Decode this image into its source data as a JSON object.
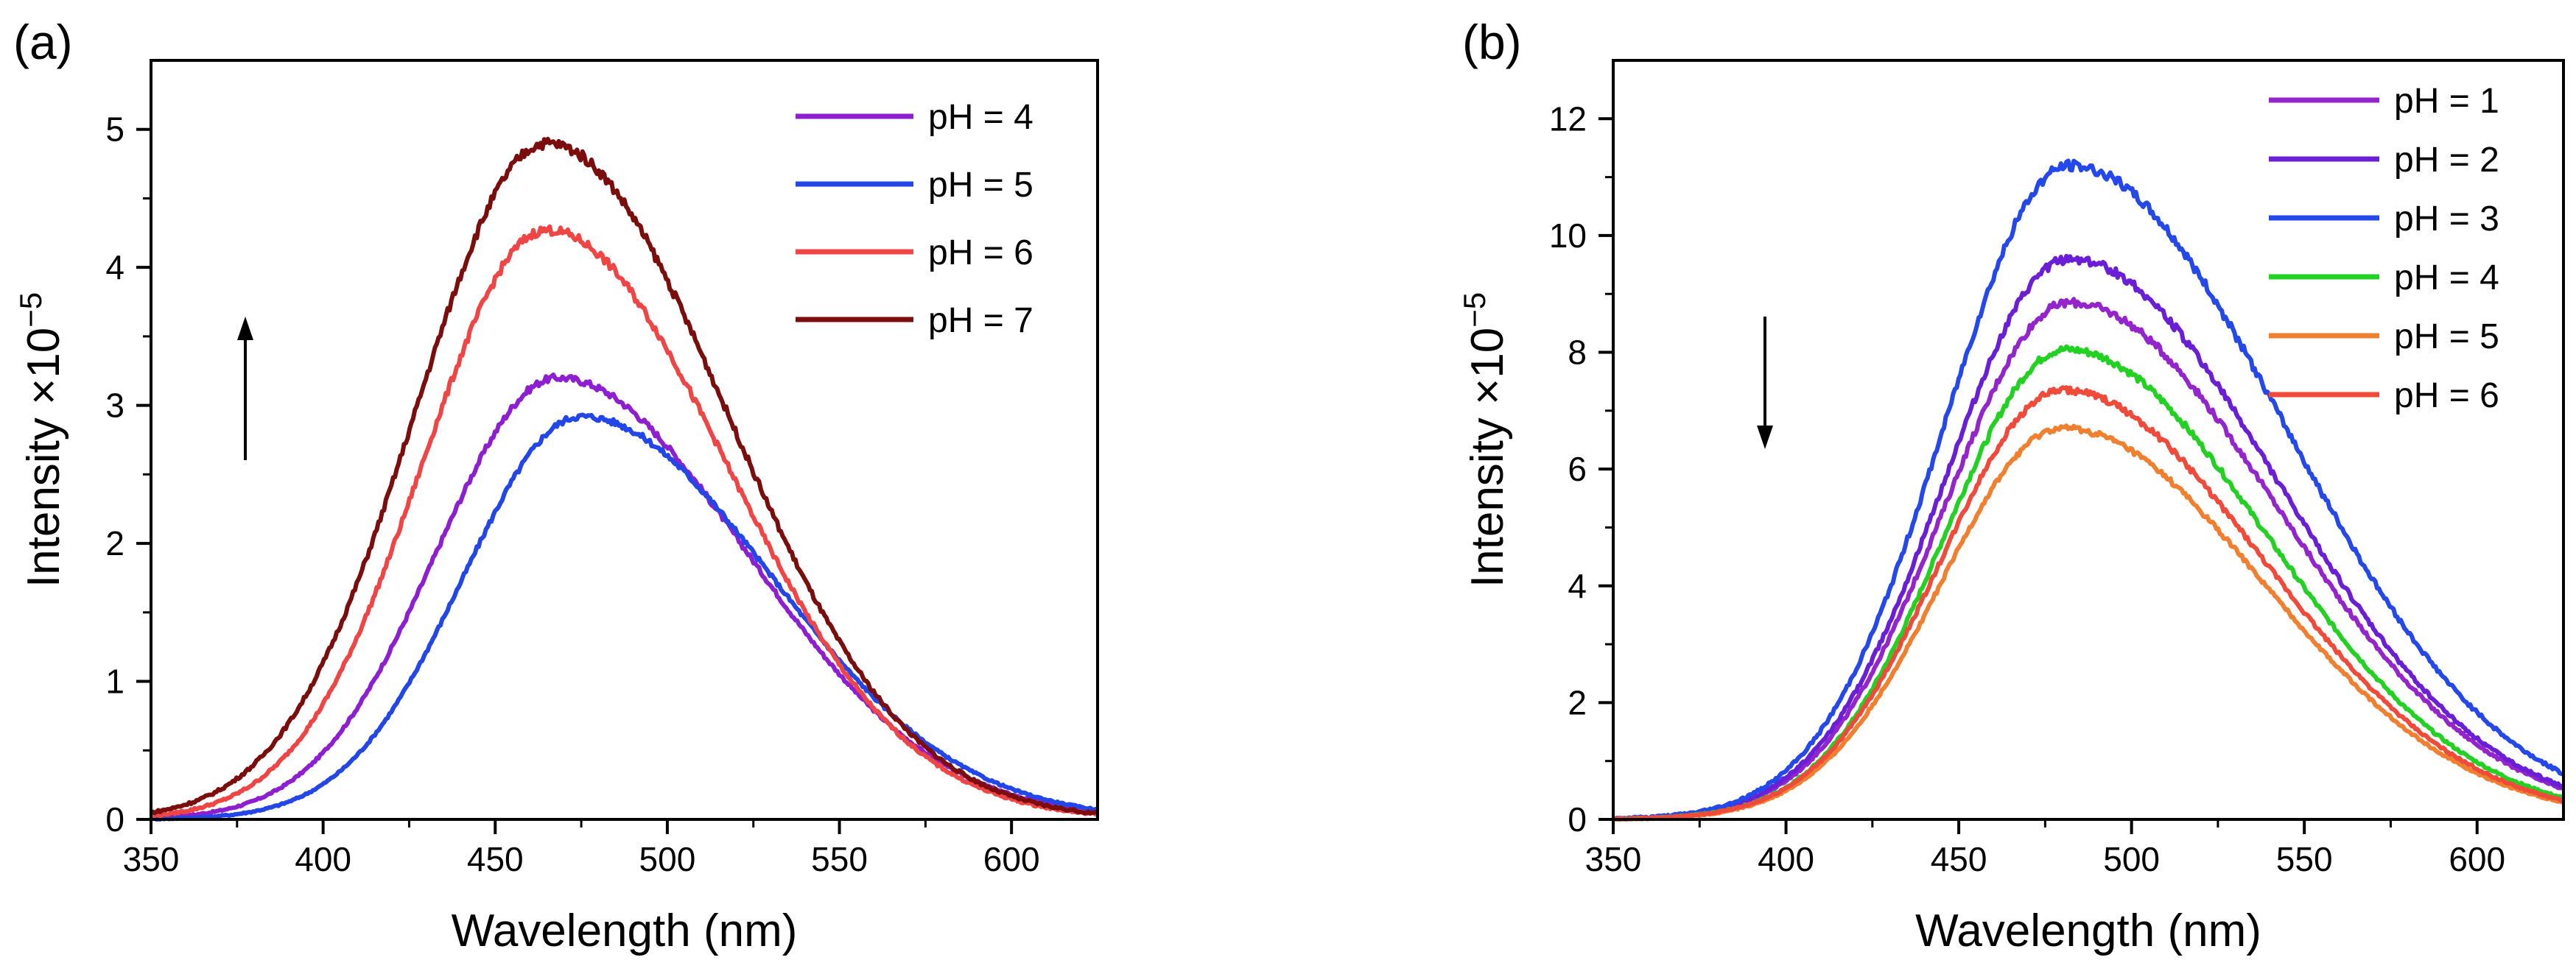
{
  "figure": {
    "panels": [
      "(a)",
      "(b)"
    ]
  },
  "chart_data": [
    {
      "type": "line",
      "panel_label": "(a)",
      "title": "",
      "xlabel": "Wavelength (nm)",
      "ylabel": "Intensity ×10",
      "ylabel_exponent": "−5",
      "xlim": [
        350,
        625
      ],
      "ylim": [
        0,
        5.5
      ],
      "xticks": [
        350,
        400,
        450,
        500,
        550,
        600
      ],
      "yticks": [
        0,
        1,
        2,
        3,
        4,
        5
      ],
      "grid": false,
      "legend_position": "top-right",
      "arrow": "up",
      "series": [
        {
          "name": "pH = 4",
          "color": "#8e1fd0",
          "peak_x": 468,
          "peak": 3.2,
          "sigma_left": 35,
          "sigma_right": 55
        },
        {
          "name": "pH = 5",
          "color": "#2346e8",
          "peak_x": 475,
          "peak": 2.92,
          "sigma_left": 34,
          "sigma_right": 55
        },
        {
          "name": "pH = 6",
          "color": "#f04545",
          "peak_x": 465,
          "peak": 4.27,
          "sigma_left": 36,
          "sigma_right": 52
        },
        {
          "name": "pH = 7",
          "color": "#7c0d0d",
          "peak_x": 465,
          "peak": 4.9,
          "sigma_left": 38,
          "sigma_right": 52
        }
      ]
    },
    {
      "type": "line",
      "panel_label": "(b)",
      "title": "",
      "xlabel": "Wavelength (nm)",
      "ylabel": "Intensity ×10",
      "ylabel_exponent": "−5",
      "xlim": [
        350,
        625
      ],
      "ylim": [
        0,
        13
      ],
      "xticks": [
        350,
        400,
        450,
        500,
        550,
        600
      ],
      "yticks": [
        0,
        2,
        4,
        6,
        8,
        10,
        12
      ],
      "grid": false,
      "legend_position": "top-right",
      "arrow": "down",
      "series": [
        {
          "name": "pH = 1",
          "color": "#9424cc",
          "peak_x": 482,
          "peak": 8.85,
          "sigma_left": 36,
          "sigma_right": 60
        },
        {
          "name": "pH = 2",
          "color": "#6a1fd6",
          "peak_x": 482,
          "peak": 9.6,
          "sigma_left": 36,
          "sigma_right": 60
        },
        {
          "name": "pH = 3",
          "color": "#2548ea",
          "peak_x": 482,
          "peak": 11.2,
          "sigma_left": 36,
          "sigma_right": 62
        },
        {
          "name": "pH = 4",
          "color": "#22d122",
          "peak_x": 481,
          "peak": 8.05,
          "sigma_left": 35,
          "sigma_right": 58
        },
        {
          "name": "pH = 5",
          "color": "#f08030",
          "peak_x": 480,
          "peak": 6.7,
          "sigma_left": 35,
          "sigma_right": 58
        },
        {
          "name": "pH = 6",
          "color": "#f04a3a",
          "peak_x": 480,
          "peak": 7.35,
          "sigma_left": 35,
          "sigma_right": 58
        }
      ]
    }
  ]
}
